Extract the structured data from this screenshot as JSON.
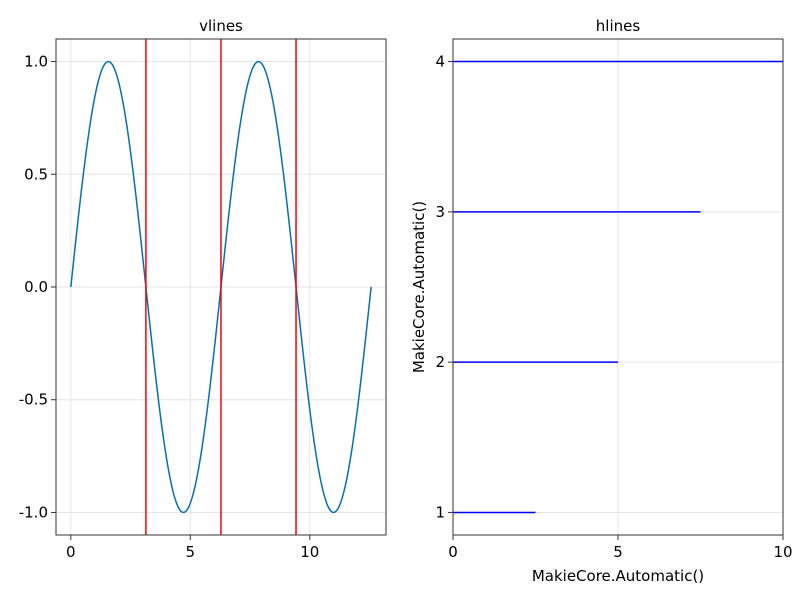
{
  "chart_data": [
    {
      "type": "line",
      "title": "vlines",
      "xlabel": "",
      "ylabel": "",
      "xlim": [
        -0.62,
        13.19
      ],
      "ylim": [
        -1.1,
        1.1
      ],
      "x_ticks": [
        0,
        5,
        10
      ],
      "y_ticks": [
        -1.0,
        -0.5,
        0.0,
        0.5,
        1.0
      ],
      "x_tick_labels": [
        "0",
        "5",
        "10"
      ],
      "y_tick_labels": [
        "-1.0",
        "-0.5",
        "0.0",
        "0.5",
        "1.0"
      ],
      "grid": true,
      "series": [
        {
          "kind": "line",
          "color": "#0072b2",
          "function": "sin(x)",
          "x_range": [
            0,
            12.5664
          ],
          "sample_points": [
            {
              "x": 0,
              "y": 0
            },
            {
              "x": 1.5708,
              "y": 1.0
            },
            {
              "x": 3.1416,
              "y": 0
            },
            {
              "x": 4.7124,
              "y": -1.0
            },
            {
              "x": 6.2832,
              "y": 0
            },
            {
              "x": 7.854,
              "y": 1.0
            },
            {
              "x": 9.4248,
              "y": 0
            },
            {
              "x": 10.9956,
              "y": -1.0
            },
            {
              "x": 12.5664,
              "y": 0
            }
          ]
        },
        {
          "kind": "vlines",
          "color": "#ff0000",
          "x": [
            3.1416,
            6.2832,
            9.4248
          ]
        }
      ]
    },
    {
      "type": "line",
      "title": "hlines",
      "xlabel": "MakieCore.Automatic()",
      "ylabel": "MakieCore.Automatic()",
      "xlim": [
        0,
        10
      ],
      "ylim": [
        0.85,
        4.15
      ],
      "x_ticks": [
        0,
        5,
        10
      ],
      "y_ticks": [
        1,
        2,
        3,
        4
      ],
      "x_tick_labels": [
        "0",
        "5",
        "10"
      ],
      "y_tick_labels": [
        "1",
        "2",
        "3",
        "4"
      ],
      "grid": true,
      "series": [
        {
          "kind": "hlines",
          "color": "#0000ff",
          "segments": [
            {
              "y": 1,
              "xmin": 0,
              "xmax": 2.5
            },
            {
              "y": 2,
              "xmin": 0,
              "xmax": 5
            },
            {
              "y": 3,
              "xmin": 0,
              "xmax": 7.5
            },
            {
              "y": 4,
              "xmin": 0,
              "xmax": 10
            }
          ]
        }
      ]
    }
  ]
}
